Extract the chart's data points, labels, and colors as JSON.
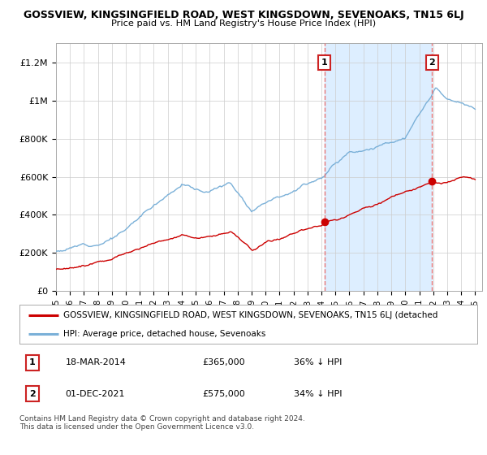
{
  "title": "GOSSVIEW, KINGSINGFIELD ROAD, WEST KINGSDOWN, SEVENOAKS, TN15 6LJ",
  "subtitle": "Price paid vs. HM Land Registry's House Price Index (HPI)",
  "ylim": [
    0,
    1300000
  ],
  "yticks": [
    0,
    200000,
    400000,
    600000,
    800000,
    1000000,
    1200000
  ],
  "ytick_labels": [
    "£0",
    "£200K",
    "£400K",
    "£600K",
    "£800K",
    "£1M",
    "£1.2M"
  ],
  "hpi_color": "#7ab0d8",
  "hpi_fill_color": "#ddeeff",
  "sale_color": "#cc0000",
  "marker1_year": 2014.21,
  "marker1_price": 365000,
  "marker2_year": 2021.92,
  "marker2_price": 575000,
  "dashed_line_color": "#e87777",
  "legend_label_red": "GOSSVIEW, KINGSINGFIELD ROAD, WEST KINGSDOWN, SEVENOAKS, TN15 6LJ (detached",
  "legend_label_blue": "HPI: Average price, detached house, Sevenoaks",
  "table_row1": [
    "1",
    "18-MAR-2014",
    "£365,000",
    "36% ↓ HPI"
  ],
  "table_row2": [
    "2",
    "01-DEC-2021",
    "£575,000",
    "34% ↓ HPI"
  ],
  "footer": "Contains HM Land Registry data © Crown copyright and database right 2024.\nThis data is licensed under the Open Government Licence v3.0.",
  "background_color": "#ffffff",
  "grid_color": "#cccccc"
}
